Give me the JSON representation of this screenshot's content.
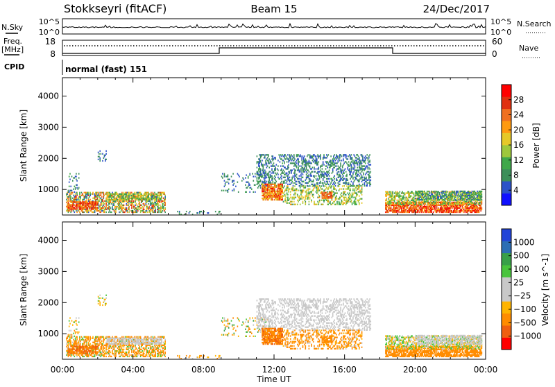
{
  "header": {
    "station": "Stokkseyri (fitACF)",
    "beam": "Beam 15",
    "date": "24/Dec/2017"
  },
  "status_panels": {
    "nsky_label": "N.Sky",
    "nsearch_label": "N.Search",
    "freq_label_1": "Freq.",
    "freq_label_2": "[MHz]",
    "nave_label": "Nave",
    "cpid_label": "CPID",
    "cpid_value": "normal (fast) 151",
    "nsky_ticks": [
      "10^5",
      "10^0"
    ],
    "nsearch_ticks": [
      "10^5",
      "10^0"
    ],
    "freq_ticks": [
      "18",
      "8"
    ],
    "nave_ticks": [
      "60",
      "0"
    ]
  },
  "colors": {
    "power": [
      "#1010ff",
      "#2c52c8",
      "#3c8f5a",
      "#3fa84a",
      "#9ec83c",
      "#e6c828",
      "#ff9a10",
      "#f07020",
      "#e03010",
      "#ff0000"
    ],
    "velocity": [
      "#ff0000",
      "#ef5f10",
      "#ff8c00",
      "#ffb400",
      "#c8c8c8",
      "#c8c8c8",
      "#49c43c",
      "#38a048",
      "#2c6eb4",
      "#2244d8"
    ]
  },
  "chart_data": [
    {
      "type": "heatmap",
      "title": "",
      "xlabel": "Time UT",
      "ylabel": "Slant Range [km]",
      "x_ticks": [
        "00:00",
        "04:00",
        "08:00",
        "12:00",
        "16:00",
        "20:00",
        "00:00"
      ],
      "x_range_hours": [
        0,
        24
      ],
      "ylim": [
        180,
        4590
      ],
      "y_ticks": [
        1000,
        2000,
        3000,
        4000
      ],
      "colorbar": {
        "label": "Power [dB]",
        "range": [
          0,
          32
        ],
        "ticks": [
          "4",
          "8",
          "12",
          "16",
          "20",
          "24",
          "28"
        ]
      }
    },
    {
      "type": "heatmap",
      "title": "",
      "xlabel": "Time UT",
      "ylabel": "Slant Range [km]",
      "x_ticks": [
        "00:00",
        "04:00",
        "08:00",
        "12:00",
        "16:00",
        "20:00",
        "00:00"
      ],
      "x_range_hours": [
        0,
        24
      ],
      "ylim": [
        180,
        4590
      ],
      "y_ticks": [
        1000,
        2000,
        3000,
        4000
      ],
      "colorbar": {
        "label": "Velocity [m s^-1]",
        "ticks": [
          "1000",
          "500",
          "100",
          "25",
          "−25",
          "−100",
          "−500",
          "−1000"
        ]
      }
    }
  ],
  "echo_regions": [
    {
      "t0": 0.2,
      "t1": 5.8,
      "r0": 250,
      "r1": 900,
      "p": [
        4,
        28
      ],
      "v": [
        -400,
        80
      ],
      "d": 0.55
    },
    {
      "t0": 0.3,
      "t1": 2.0,
      "r0": 350,
      "r1": 600,
      "p": [
        20,
        30
      ],
      "v": [
        -800,
        -100
      ],
      "d": 0.7
    },
    {
      "t0": 2.5,
      "t1": 5.6,
      "r0": 650,
      "r1": 850,
      "p": [
        8,
        20
      ],
      "v": [
        -25,
        25
      ],
      "d": 0.6
    },
    {
      "t0": 0.3,
      "t1": 1.0,
      "r0": 900,
      "r1": 1500,
      "p": [
        4,
        10
      ],
      "v": [
        -200,
        100
      ],
      "d": 0.15
    },
    {
      "t0": 2.0,
      "t1": 2.5,
      "r0": 1900,
      "r1": 2300,
      "p": [
        4,
        9
      ],
      "v": [
        -100,
        50
      ],
      "d": 0.2
    },
    {
      "t0": 6.5,
      "t1": 9.0,
      "r0": 180,
      "r1": 350,
      "p": [
        4,
        12
      ],
      "v": [
        -300,
        50
      ],
      "d": 0.12
    },
    {
      "t0": 9.0,
      "t1": 11.8,
      "r0": 900,
      "r1": 1500,
      "p": [
        4,
        10
      ],
      "v": [
        -200,
        200
      ],
      "d": 0.12
    },
    {
      "t0": 11.0,
      "t1": 17.5,
      "r0": 1100,
      "r1": 2100,
      "p": [
        4,
        10
      ],
      "v": [
        -25,
        25
      ],
      "d": 0.35
    },
    {
      "t0": 11.3,
      "t1": 12.5,
      "r0": 650,
      "r1": 1150,
      "p": [
        16,
        30
      ],
      "v": [
        -700,
        -100
      ],
      "d": 0.8
    },
    {
      "t0": 12.5,
      "t1": 17.0,
      "r0": 500,
      "r1": 1100,
      "p": [
        8,
        20
      ],
      "v": [
        -500,
        25
      ],
      "d": 0.35
    },
    {
      "t0": 14.7,
      "t1": 15.3,
      "r0": 700,
      "r1": 900,
      "p": [
        22,
        28
      ],
      "v": [
        -400,
        -100
      ],
      "d": 0.8
    },
    {
      "t0": 18.3,
      "t1": 23.8,
      "r0": 250,
      "r1": 600,
      "p": [
        20,
        31
      ],
      "v": [
        -500,
        -100
      ],
      "d": 0.75
    },
    {
      "t0": 18.3,
      "t1": 23.8,
      "r0": 500,
      "r1": 950,
      "p": [
        8,
        22
      ],
      "v": [
        -100,
        100
      ],
      "d": 0.55
    },
    {
      "t0": 20.0,
      "t1": 23.8,
      "r0": 650,
      "r1": 950,
      "p": [
        4,
        14
      ],
      "v": [
        -25,
        25
      ],
      "d": 0.5
    }
  ]
}
